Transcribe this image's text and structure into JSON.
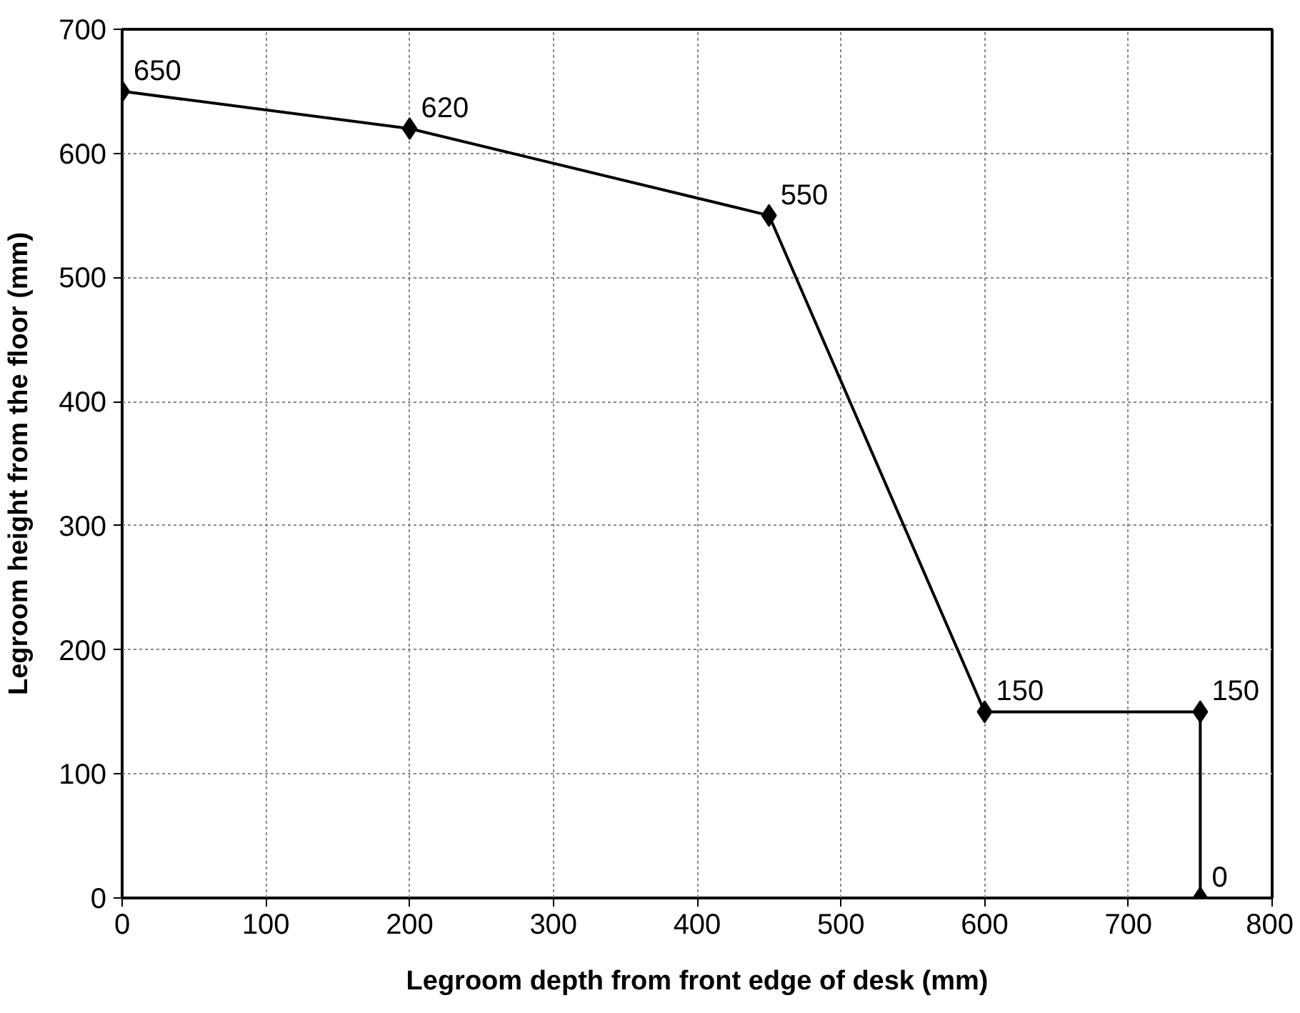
{
  "chart_data": {
    "type": "line",
    "xlabel": "Legroom depth from front edge of desk (mm)",
    "ylabel": "Legroom height from the floor (mm)",
    "x": [
      0,
      200,
      450,
      600,
      750,
      750
    ],
    "series": [
      {
        "color": "#000000",
        "values": [
          650,
          620,
          550,
          150,
          150,
          0
        ]
      }
    ],
    "xlim": [
      0,
      800
    ],
    "ylim": [
      0,
      700
    ],
    "xticks": [
      0,
      100,
      200,
      300,
      400,
      500,
      600,
      700,
      800
    ],
    "yticks": [
      0,
      100,
      200,
      300,
      400,
      500,
      600,
      700
    ],
    "grid": true,
    "marker": "diamond",
    "line_style": "solid",
    "data_labels": true
  }
}
